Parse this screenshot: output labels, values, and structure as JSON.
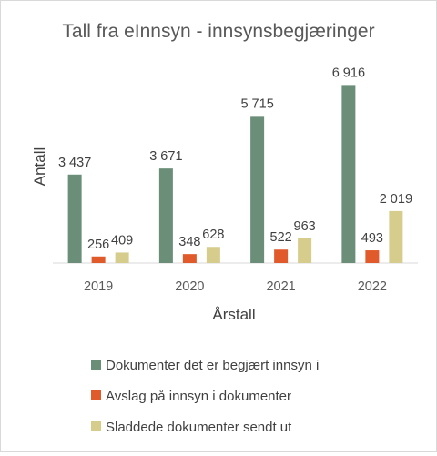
{
  "chart_data": {
    "type": "bar",
    "title": "Tall fra eInnsyn - innsynsbegjæringer",
    "xlabel": "Årstall",
    "ylabel": "Antall",
    "categories": [
      "2019",
      "2020",
      "2021",
      "2022"
    ],
    "series": [
      {
        "name": "Dokumenter det er begjært innsyn i",
        "values": [
          3437,
          3671,
          5715,
          6916
        ],
        "value_labels": [
          "3 437",
          "3 671",
          "5 715",
          "6 916"
        ],
        "color": "#6b8e78"
      },
      {
        "name": "Avslag på innsyn i dokumenter",
        "values": [
          256,
          348,
          522,
          493
        ],
        "value_labels": [
          "256",
          "348",
          "522",
          "493"
        ],
        "color": "#e05a2b"
      },
      {
        "name": "Sladdede dokumenter sendt ut",
        "values": [
          409,
          628,
          963,
          2019
        ],
        "value_labels": [
          "409",
          "628",
          "963",
          "2 019"
        ],
        "color": "#d6cc8c"
      }
    ],
    "ylim": [
      0,
      7000
    ],
    "grid": false,
    "legend_position": "bottom"
  }
}
